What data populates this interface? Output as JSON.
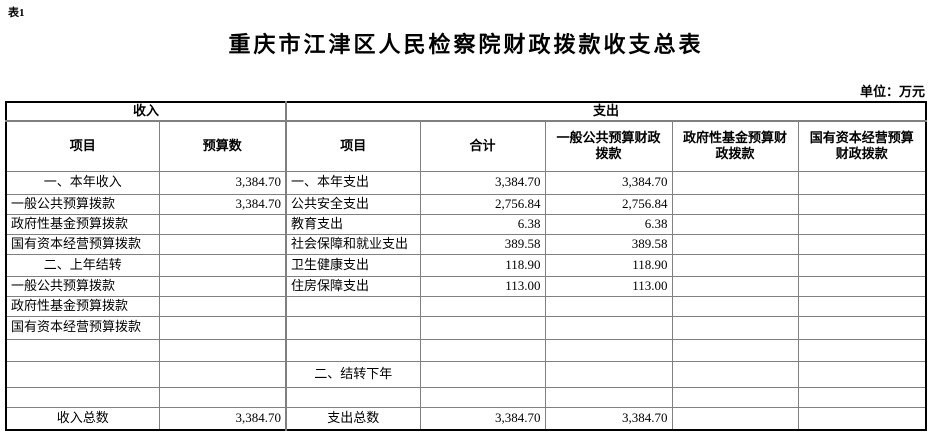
{
  "page": {
    "table_tag": "表1",
    "title": "重庆市江津区人民检察院财政拨款收支总表",
    "unit_label": "单位：万元"
  },
  "table": {
    "group_headers": [
      {
        "label": "收入",
        "colspan": 2
      },
      {
        "label": "支出",
        "colspan": 5
      }
    ],
    "column_headers": [
      "项目",
      "预算数",
      "项目",
      "合计",
      "一般公共预算财政拨款",
      "政府性基金预算财政拨款",
      "国有资本经营预算财政拨款"
    ],
    "rows": [
      {
        "cells": [
          {
            "text": "一、本年收入",
            "align": "center"
          },
          {
            "text": "3,384.70",
            "align": "right"
          },
          {
            "text": "一、本年支出",
            "align": "left"
          },
          {
            "text": "3,384.70",
            "align": "right"
          },
          {
            "text": "3,384.70",
            "align": "right"
          },
          {
            "text": "",
            "align": "right"
          },
          {
            "text": "",
            "align": "right"
          }
        ]
      },
      {
        "cells": [
          {
            "text": "一般公共预算拨款",
            "align": "left"
          },
          {
            "text": "3,384.70",
            "align": "right"
          },
          {
            "text": "公共安全支出",
            "align": "left"
          },
          {
            "text": "2,756.84",
            "align": "right"
          },
          {
            "text": "2,756.84",
            "align": "right"
          },
          {
            "text": "",
            "align": "right"
          },
          {
            "text": "",
            "align": "right"
          }
        ]
      },
      {
        "cells": [
          {
            "text": "政府性基金预算拨款",
            "align": "left"
          },
          {
            "text": "",
            "align": "right"
          },
          {
            "text": "教育支出",
            "align": "left"
          },
          {
            "text": "6.38",
            "align": "right"
          },
          {
            "text": "6.38",
            "align": "right"
          },
          {
            "text": "",
            "align": "right"
          },
          {
            "text": "",
            "align": "right"
          }
        ]
      },
      {
        "cells": [
          {
            "text": "国有资本经营预算拨款",
            "align": "left"
          },
          {
            "text": "",
            "align": "right"
          },
          {
            "text": "社会保障和就业支出",
            "align": "left"
          },
          {
            "text": "389.58",
            "align": "right"
          },
          {
            "text": "389.58",
            "align": "right"
          },
          {
            "text": "",
            "align": "right"
          },
          {
            "text": "",
            "align": "right"
          }
        ]
      },
      {
        "cells": [
          {
            "text": "二、上年结转",
            "align": "center"
          },
          {
            "text": "",
            "align": "right"
          },
          {
            "text": "卫生健康支出",
            "align": "left"
          },
          {
            "text": "118.90",
            "align": "right"
          },
          {
            "text": "118.90",
            "align": "right"
          },
          {
            "text": "",
            "align": "right"
          },
          {
            "text": "",
            "align": "right"
          }
        ]
      },
      {
        "cells": [
          {
            "text": "一般公共预算拨款",
            "align": "left"
          },
          {
            "text": "",
            "align": "right"
          },
          {
            "text": "住房保障支出",
            "align": "left"
          },
          {
            "text": "113.00",
            "align": "right"
          },
          {
            "text": "113.00",
            "align": "right"
          },
          {
            "text": "",
            "align": "right"
          },
          {
            "text": "",
            "align": "right"
          }
        ]
      },
      {
        "cells": [
          {
            "text": "政府性基金预算拨款",
            "align": "left"
          },
          {
            "text": "",
            "align": "right"
          },
          {
            "text": "",
            "align": "left"
          },
          {
            "text": "",
            "align": "right"
          },
          {
            "text": "",
            "align": "right"
          },
          {
            "text": "",
            "align": "right"
          },
          {
            "text": "",
            "align": "right"
          }
        ]
      },
      {
        "cells": [
          {
            "text": "国有资本经营预算拨款",
            "align": "left"
          },
          {
            "text": "",
            "align": "right"
          },
          {
            "text": "",
            "align": "left"
          },
          {
            "text": "",
            "align": "right"
          },
          {
            "text": "",
            "align": "right"
          },
          {
            "text": "",
            "align": "right"
          },
          {
            "text": "",
            "align": "right"
          }
        ]
      },
      {
        "cells": [
          {
            "text": "",
            "align": "left"
          },
          {
            "text": "",
            "align": "right"
          },
          {
            "text": "",
            "align": "left"
          },
          {
            "text": "",
            "align": "right"
          },
          {
            "text": "",
            "align": "right"
          },
          {
            "text": "",
            "align": "right"
          },
          {
            "text": "",
            "align": "right"
          }
        ]
      },
      {
        "cells": [
          {
            "text": "",
            "align": "left"
          },
          {
            "text": "",
            "align": "right"
          },
          {
            "text": "二、结转下年",
            "align": "center"
          },
          {
            "text": "",
            "align": "right"
          },
          {
            "text": "",
            "align": "right"
          },
          {
            "text": "",
            "align": "right"
          },
          {
            "text": "",
            "align": "right"
          }
        ]
      },
      {
        "cells": [
          {
            "text": "",
            "align": "left"
          },
          {
            "text": "",
            "align": "right"
          },
          {
            "text": "",
            "align": "left"
          },
          {
            "text": "",
            "align": "right"
          },
          {
            "text": "",
            "align": "right"
          },
          {
            "text": "",
            "align": "right"
          },
          {
            "text": "",
            "align": "right"
          }
        ]
      },
      {
        "cells": [
          {
            "text": "收入总数",
            "align": "center"
          },
          {
            "text": "3,384.70",
            "align": "right"
          },
          {
            "text": "支出总数",
            "align": "center"
          },
          {
            "text": "3,384.70",
            "align": "right"
          },
          {
            "text": "3,384.70",
            "align": "right"
          },
          {
            "text": "",
            "align": "right"
          },
          {
            "text": "",
            "align": "right"
          }
        ]
      }
    ]
  }
}
